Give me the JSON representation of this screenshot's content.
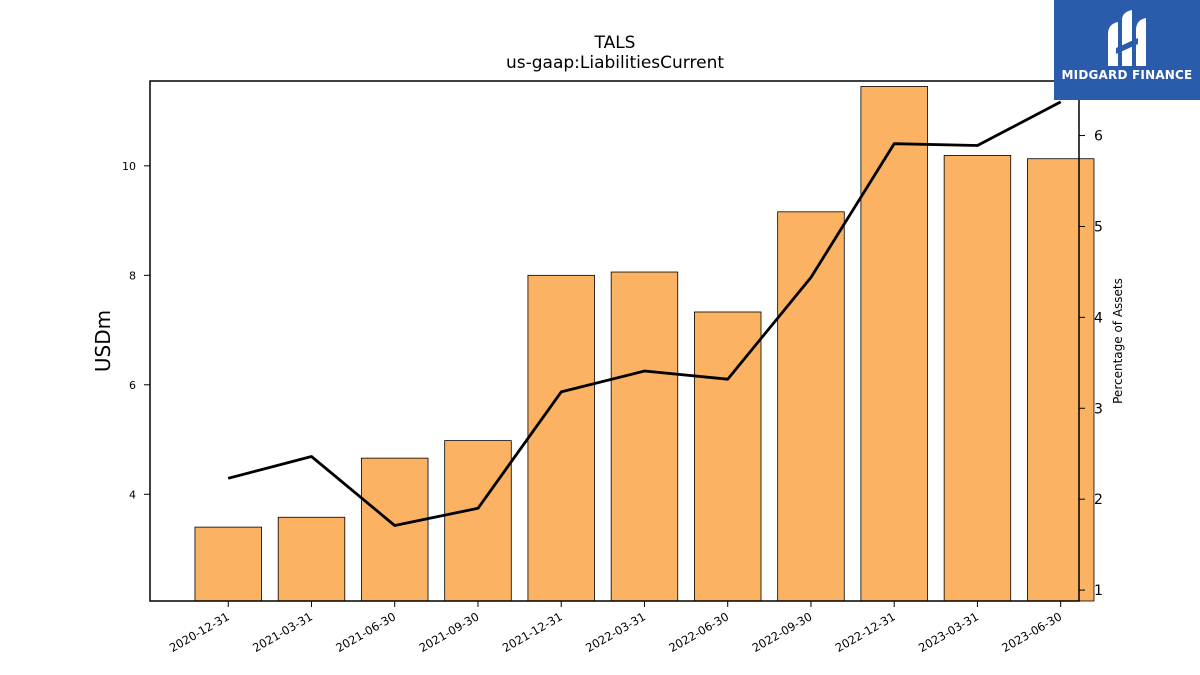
{
  "chart_data": {
    "type": "bar",
    "title": "TALS",
    "subtitle": "us-gaap:LiabilitiesCurrent",
    "ylabel": "USDm",
    "y2label": "Percentage of Assets",
    "categories": [
      "2020-12-31",
      "2021-03-31",
      "2021-06-30",
      "2021-09-30",
      "2021-12-31",
      "2022-03-31",
      "2022-06-30",
      "2022-09-30",
      "2022-12-31",
      "2023-03-31",
      "2023-06-30"
    ],
    "series": [
      {
        "values": [
          3.4,
          3.58,
          4.66,
          4.98,
          8.0,
          8.06,
          7.33,
          9.16,
          11.45,
          10.19,
          10.13
        ],
        "color": "#fbb262",
        "axis": "left"
      },
      {
        "type": "line",
        "values": [
          2.23,
          2.47,
          1.71,
          1.9,
          3.18,
          3.41,
          3.32,
          4.44,
          5.91,
          5.89,
          6.37
        ],
        "color": "#000000",
        "axis": "right"
      }
    ],
    "ylim": [
      2.05,
      11.55
    ],
    "yticks": [
      4,
      6,
      8,
      10
    ],
    "y2lim": [
      0.88,
      6.6
    ],
    "y2ticks": [
      1,
      2,
      3,
      4,
      5,
      6
    ],
    "grid": false,
    "legend": "none"
  },
  "logo": {
    "text": "MIDGARD FINANCE",
    "bg": "#2b5bab"
  }
}
